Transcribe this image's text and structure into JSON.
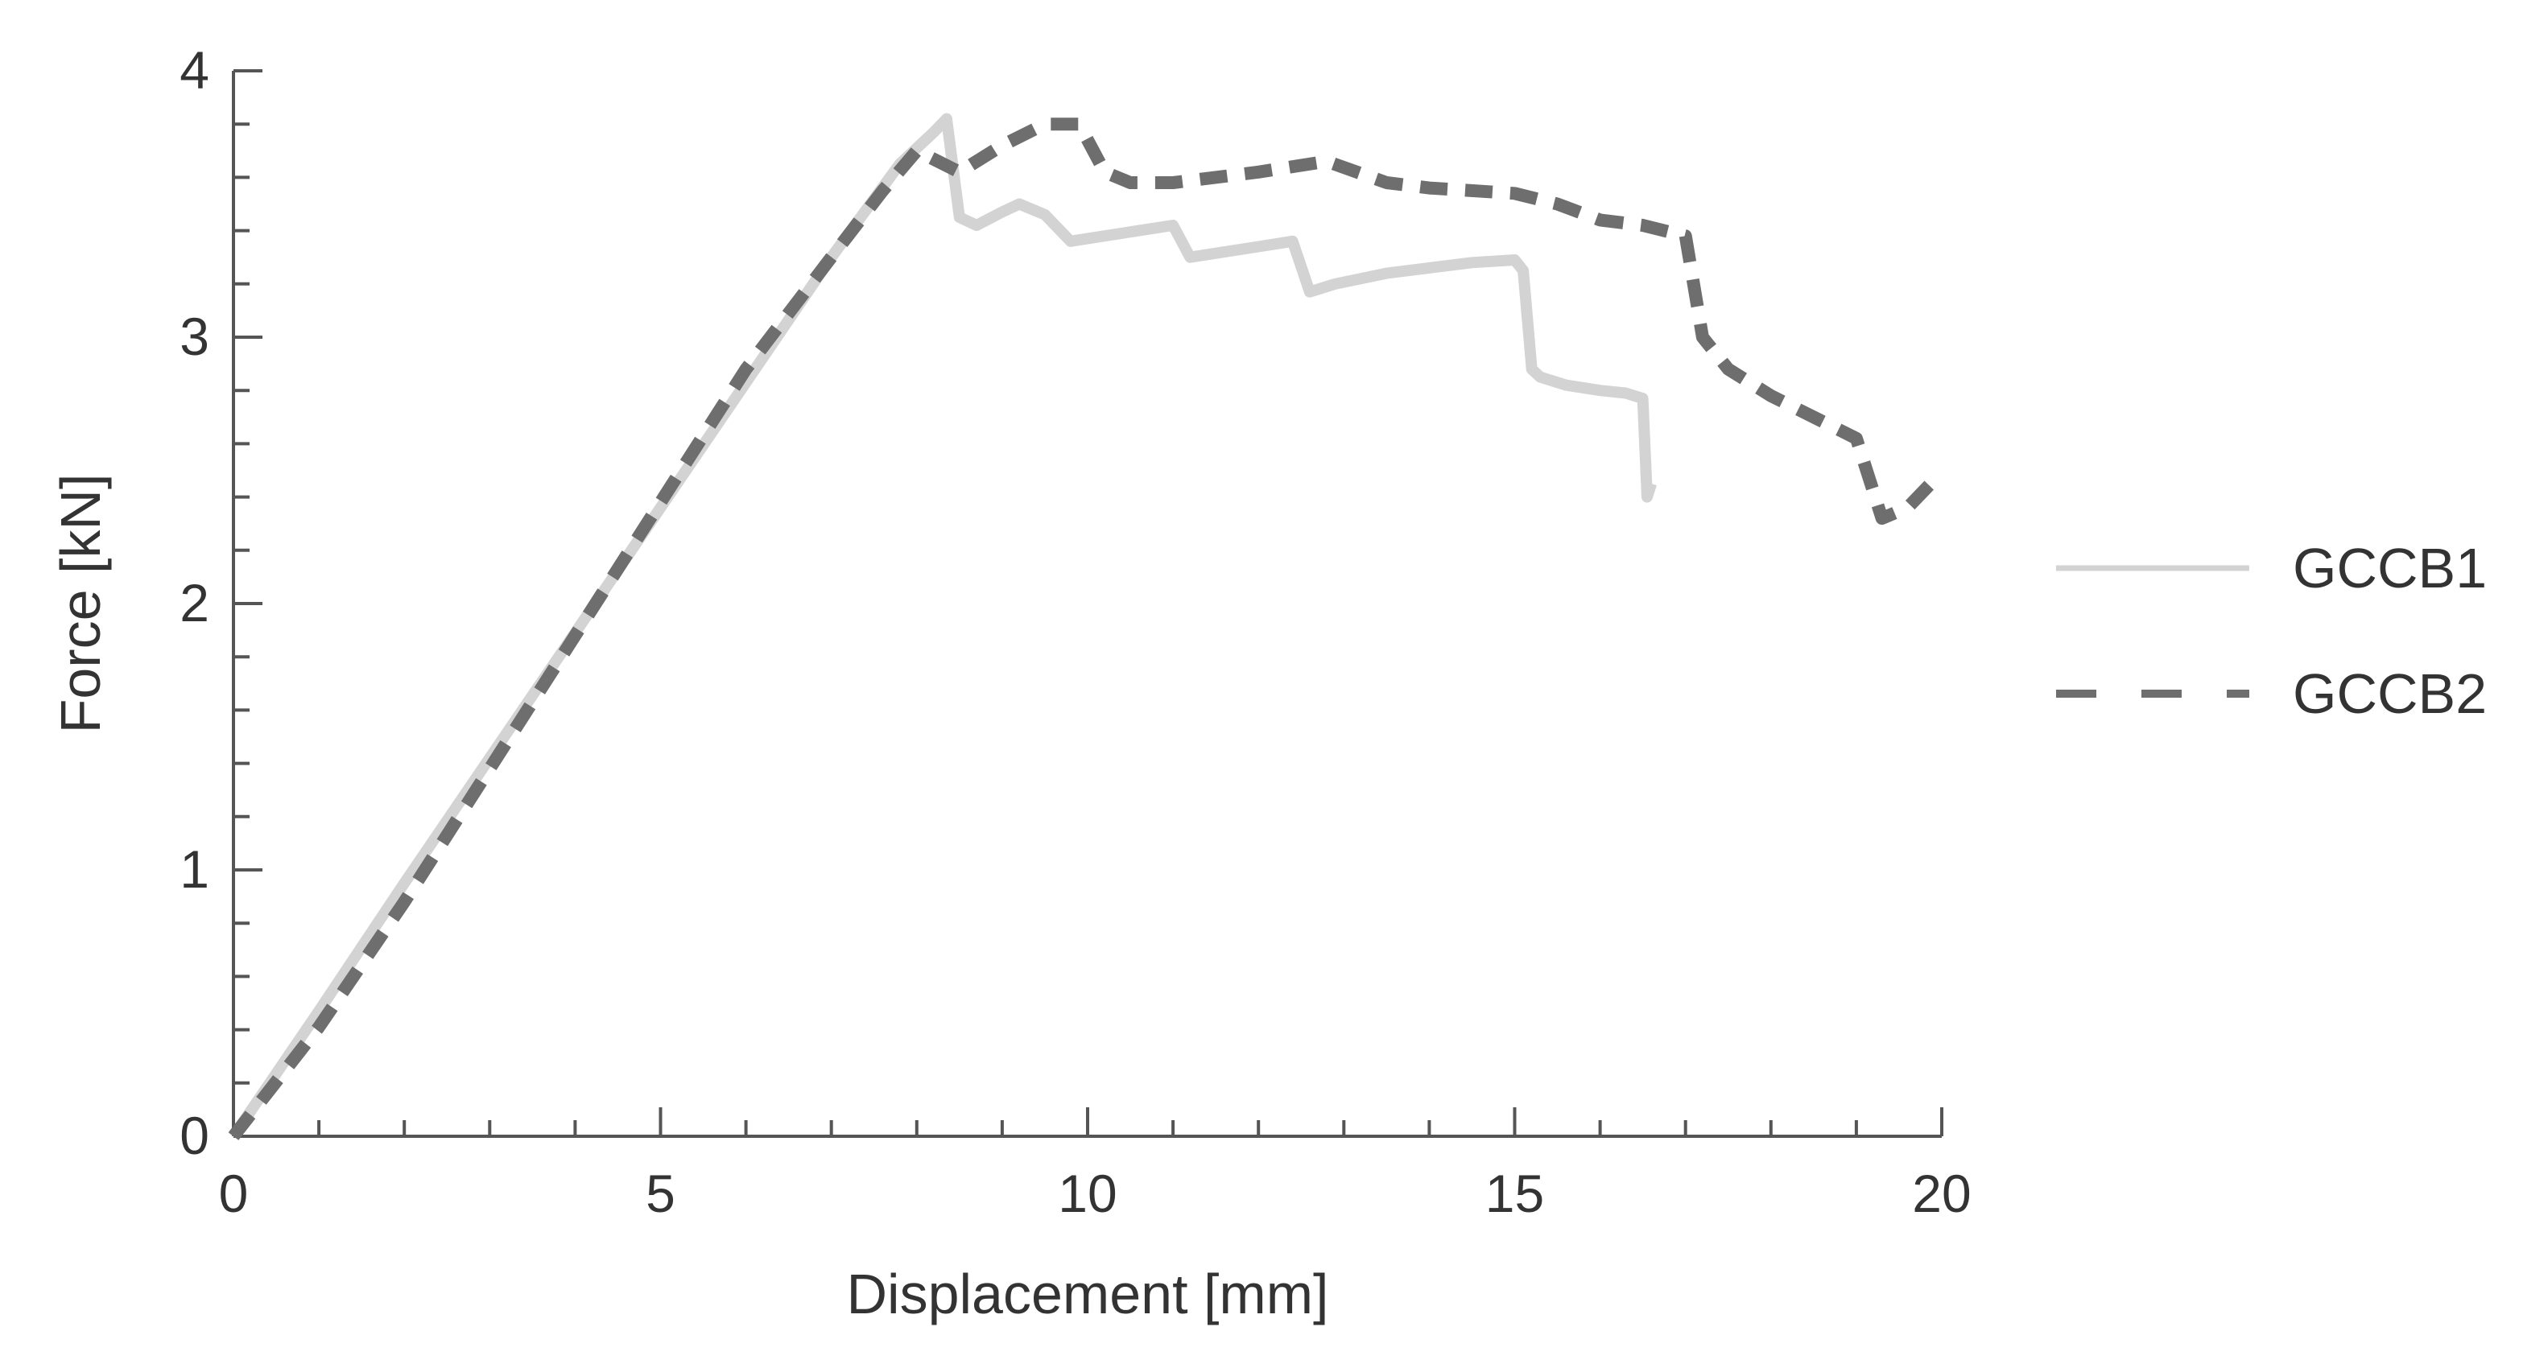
{
  "chart_data": {
    "type": "line",
    "title": "",
    "xlabel": "Displacement [mm]",
    "ylabel": "Force [kN]",
    "xlim": [
      0,
      20
    ],
    "ylim": [
      0,
      4
    ],
    "x_ticks": [
      "0",
      "5",
      "10",
      "15",
      "20"
    ],
    "y_ticks": [
      "0",
      "1",
      "2",
      "3",
      "4"
    ],
    "grid": false,
    "legend_position": "right",
    "series": [
      {
        "name": "GCCB1",
        "style": "solid",
        "color": "#d3d3d3",
        "x": [
          0.0,
          1.0,
          2.0,
          3.0,
          4.0,
          5.0,
          6.0,
          7.0,
          7.8,
          8.2,
          8.35,
          8.5,
          8.7,
          9.0,
          9.2,
          9.5,
          9.8,
          10.2,
          10.6,
          11.0,
          11.2,
          11.6,
          12.0,
          12.4,
          12.6,
          12.9,
          13.5,
          14.0,
          14.5,
          15.0,
          15.1,
          15.2,
          15.3,
          15.6,
          16.0,
          16.3,
          16.5,
          16.55,
          16.6
        ],
        "y": [
          0.0,
          0.47,
          0.95,
          1.42,
          1.89,
          2.36,
          2.83,
          3.3,
          3.65,
          3.77,
          3.82,
          3.45,
          3.42,
          3.47,
          3.5,
          3.46,
          3.36,
          3.38,
          3.4,
          3.42,
          3.3,
          3.32,
          3.34,
          3.36,
          3.17,
          3.2,
          3.24,
          3.26,
          3.28,
          3.29,
          3.25,
          2.88,
          2.85,
          2.82,
          2.8,
          2.79,
          2.77,
          2.4,
          2.45
        ]
      },
      {
        "name": "GCCB2",
        "style": "dashed",
        "color": "#6e6e6e",
        "x": [
          0.0,
          1.0,
          2.0,
          3.0,
          4.0,
          5.0,
          6.0,
          7.0,
          7.6,
          8.0,
          8.5,
          9.0,
          9.5,
          9.9,
          10.2,
          10.5,
          11.0,
          12.0,
          12.8,
          13.5,
          14.0,
          15.0,
          15.5,
          16.0,
          16.5,
          17.0,
          17.2,
          17.5,
          18.0,
          18.5,
          19.0,
          19.3,
          19.6,
          19.9
        ],
        "y": [
          0.0,
          0.41,
          0.88,
          1.38,
          1.88,
          2.38,
          2.88,
          3.3,
          3.55,
          3.7,
          3.62,
          3.72,
          3.8,
          3.8,
          3.62,
          3.58,
          3.58,
          3.62,
          3.66,
          3.58,
          3.56,
          3.54,
          3.5,
          3.44,
          3.42,
          3.38,
          3.0,
          2.88,
          2.78,
          2.7,
          2.62,
          2.32,
          2.36,
          2.46
        ]
      }
    ]
  }
}
